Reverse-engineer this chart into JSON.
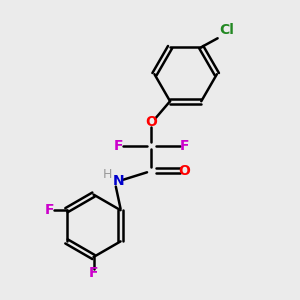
{
  "background_color": "#ebebeb",
  "bond_color": "#000000",
  "bond_width": 1.8,
  "figsize": [
    3.0,
    3.0
  ],
  "dpi": 100,
  "atom_labels": {
    "O_ether": {
      "text": "O",
      "color": "#ff0000",
      "fontsize": 10,
      "fontweight": "bold"
    },
    "F1": {
      "text": "F",
      "color": "#cc00cc",
      "fontsize": 10,
      "fontweight": "bold"
    },
    "F2": {
      "text": "F",
      "color": "#cc00cc",
      "fontsize": 10,
      "fontweight": "bold"
    },
    "C_carbonyl_O": {
      "text": "O",
      "color": "#ff0000",
      "fontsize": 10,
      "fontweight": "bold"
    },
    "NH_N": {
      "text": "N",
      "color": "#0000cc",
      "fontsize": 10,
      "fontweight": "bold"
    },
    "NH_H": {
      "text": "H",
      "color": "#999999",
      "fontsize": 9,
      "fontweight": "normal"
    },
    "Cl": {
      "text": "Cl",
      "color": "#228822",
      "fontsize": 10,
      "fontweight": "bold"
    },
    "F3": {
      "text": "F",
      "color": "#cc00cc",
      "fontsize": 10,
      "fontweight": "bold"
    },
    "F4": {
      "text": "F",
      "color": "#cc00cc",
      "fontsize": 10,
      "fontweight": "bold"
    }
  }
}
